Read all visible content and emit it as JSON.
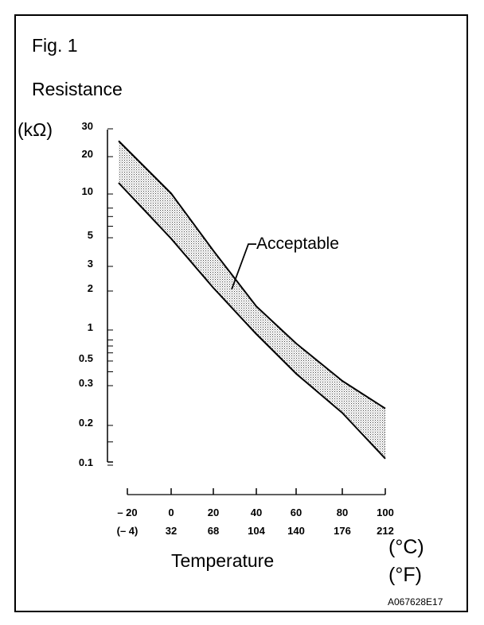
{
  "figure_label": "Fig. 1",
  "code": "A067628E17",
  "chart_data": {
    "type": "area",
    "title": "Fig. 1",
    "ylabel": "Resistance",
    "yunit": "(kΩ)",
    "xlabel": "Temperature",
    "xunit_c": "(°C)",
    "xunit_f": "(°F)",
    "yscale": "log",
    "ylim": [
      0.1,
      30
    ],
    "xlim": [
      -20,
      100
    ],
    "y_ticks": [
      30,
      20,
      10,
      5,
      3,
      2,
      1,
      0.5,
      0.3,
      0.2,
      0.1
    ],
    "y_tick_labels": [
      "30",
      "20",
      "10",
      "5",
      "3",
      "2",
      "1",
      "0.5",
      "0.3",
      "0.2",
      "0.1"
    ],
    "x_ticks": [
      -20,
      0,
      20,
      40,
      60,
      80,
      100
    ],
    "x_tick_labels_c": [
      "– 20",
      "0",
      "20",
      "40",
      "60",
      "80",
      "100"
    ],
    "x_tick_labels_f": [
      "(– 4)",
      "32",
      "68",
      "104",
      "140",
      "176",
      "212"
    ],
    "series": [
      {
        "name": "upper limit",
        "x": [
          -24,
          0,
          20,
          40,
          60,
          80,
          100
        ],
        "y": [
          24,
          9.6,
          3.75,
          1.44,
          0.69,
          0.31,
          0.23
        ]
      },
      {
        "name": "lower limit",
        "x": [
          -24,
          0,
          20,
          40,
          60,
          80,
          100
        ],
        "y": [
          11.6,
          4.65,
          2.0,
          0.85,
          0.36,
          0.22,
          0.106
        ]
      }
    ],
    "annotations": [
      {
        "text": "Acceptable",
        "target": "band between limits"
      }
    ],
    "grid": false,
    "legend": "none"
  }
}
